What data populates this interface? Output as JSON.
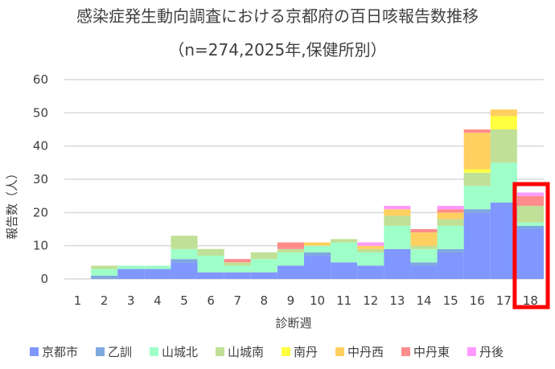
{
  "chart_data": {
    "type": "bar",
    "stacked": true,
    "title": "感染症発生動向調査における京都府の百日咳報告数推移",
    "subtitle": "（n=274,2025年,保健所別）",
    "xlabel": "診断週",
    "ylabel": "報告数（人）",
    "ylim": [
      0,
      60
    ],
    "yticks": [
      0,
      10,
      20,
      30,
      40,
      50,
      60
    ],
    "grid": true,
    "legend_position": "bottom",
    "highlight_category": "18",
    "highlight_color": "#ff0000",
    "categories": [
      "1",
      "2",
      "3",
      "4",
      "5",
      "6",
      "7",
      "8",
      "9",
      "10",
      "11",
      "12",
      "13",
      "14",
      "15",
      "16",
      "17",
      "18"
    ],
    "series": [
      {
        "name": "京都市",
        "color": "#8097ff",
        "values": [
          0,
          0,
          3,
          3,
          5,
          2,
          2,
          2,
          4,
          7,
          5,
          4,
          9,
          4,
          8,
          20,
          23,
          15
        ]
      },
      {
        "name": "乙訓",
        "color": "#7fa8e0",
        "values": [
          0,
          1,
          0,
          0,
          1,
          0,
          0,
          0,
          0,
          1,
          0,
          0,
          0,
          1,
          1,
          1,
          0,
          1
        ]
      },
      {
        "name": "山城北",
        "color": "#9effc8",
        "values": [
          0,
          2,
          1,
          1,
          3,
          5,
          2,
          4,
          4,
          2,
          6,
          4,
          7,
          4,
          7,
          7,
          12,
          1
        ]
      },
      {
        "name": "山城南",
        "color": "#bfe096",
        "values": [
          0,
          1,
          0,
          0,
          4,
          2,
          1,
          2,
          1,
          0,
          1,
          1,
          3,
          1,
          2,
          4,
          10,
          5
        ]
      },
      {
        "name": "南丹",
        "color": "#ffff40",
        "values": [
          0,
          0,
          0,
          0,
          0,
          0,
          0,
          0,
          0,
          0,
          0,
          0,
          0,
          0,
          0,
          1,
          4,
          0
        ]
      },
      {
        "name": "中丹西",
        "color": "#ffd060",
        "values": [
          0,
          0,
          0,
          0,
          0,
          0,
          0,
          0,
          0,
          1,
          0,
          1,
          2,
          4,
          2,
          11,
          2,
          0
        ]
      },
      {
        "name": "中丹東",
        "color": "#ff8c8c",
        "values": [
          0,
          0,
          0,
          0,
          0,
          0,
          1,
          0,
          2,
          0,
          0,
          0,
          0,
          1,
          1,
          1,
          0,
          3
        ]
      },
      {
        "name": "丹後",
        "color": "#ff99ff",
        "values": [
          0,
          0,
          0,
          0,
          0,
          0,
          0,
          0,
          0,
          0,
          0,
          1,
          1,
          0,
          1,
          0,
          0,
          1
        ]
      }
    ]
  }
}
